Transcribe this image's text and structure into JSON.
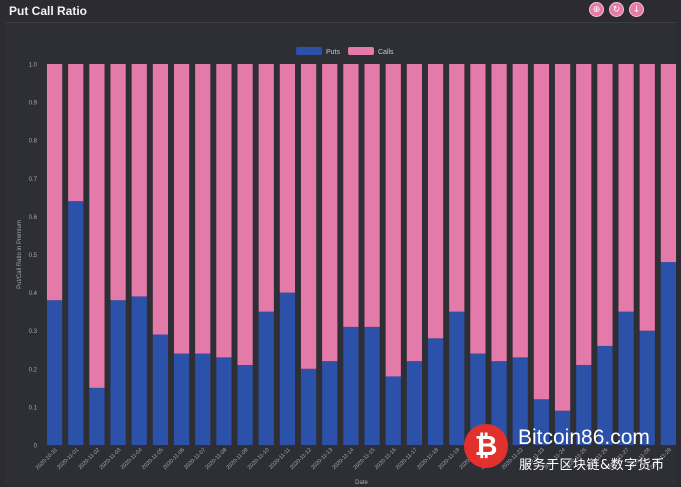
{
  "header": {
    "title": "Put Call Ratio",
    "toolbar_icons": [
      "zoom-icon",
      "refresh-icon",
      "download-icon"
    ]
  },
  "watermark": {
    "glyph": "₿",
    "line1": "Bitcoin86.com",
    "line2": "服务于区块链&数字货币"
  },
  "chart_data": {
    "type": "bar",
    "stacked": true,
    "title": "Put Call Ratio",
    "xlabel": "Date",
    "ylabel": "Put/Call Ratio in Premium",
    "ylim": [
      0,
      1
    ],
    "yticks": [
      "0",
      "0.1",
      "0.2",
      "0.3",
      "0.4",
      "0.5",
      "0.6",
      "0.7",
      "0.8",
      "0.9",
      "1.0"
    ],
    "legend": "top-center",
    "grid": false,
    "categories": [
      "2020-10-31",
      "2020-11-01",
      "2020-11-02",
      "2020-11-03",
      "2020-11-04",
      "2020-11-05",
      "2020-11-06",
      "2020-11-07",
      "2020-11-08",
      "2020-11-09",
      "2020-11-10",
      "2020-11-11",
      "2020-11-12",
      "2020-11-13",
      "2020-11-14",
      "2020-11-15",
      "2020-11-16",
      "2020-11-17",
      "2020-11-18",
      "2020-11-19",
      "2020-11-20",
      "2020-11-21",
      "2020-11-22",
      "2020-11-23",
      "2020-11-24",
      "2020-11-25",
      "2020-11-26",
      "2020-11-27",
      "2020-11-28",
      "2020-11-29"
    ],
    "series": [
      {
        "name": "Puts",
        "color": "#2b52a8",
        "values": [
          0.38,
          0.64,
          0.15,
          0.38,
          0.39,
          0.29,
          0.24,
          0.24,
          0.23,
          0.21,
          0.35,
          0.4,
          0.2,
          0.22,
          0.31,
          0.31,
          0.18,
          0.22,
          0.28,
          0.35,
          0.24,
          0.22,
          0.23,
          0.12,
          0.09,
          0.21,
          0.26,
          0.35,
          0.3,
          0.48
        ]
      },
      {
        "name": "Calls",
        "color": "#e37aa9",
        "values": [
          0.62,
          0.36,
          0.85,
          0.62,
          0.61,
          0.71,
          0.76,
          0.76,
          0.77,
          0.79,
          0.65,
          0.6,
          0.8,
          0.78,
          0.69,
          0.69,
          0.82,
          0.78,
          0.72,
          0.65,
          0.76,
          0.78,
          0.77,
          0.88,
          0.91,
          0.79,
          0.74,
          0.65,
          0.7,
          0.52
        ]
      }
    ]
  }
}
